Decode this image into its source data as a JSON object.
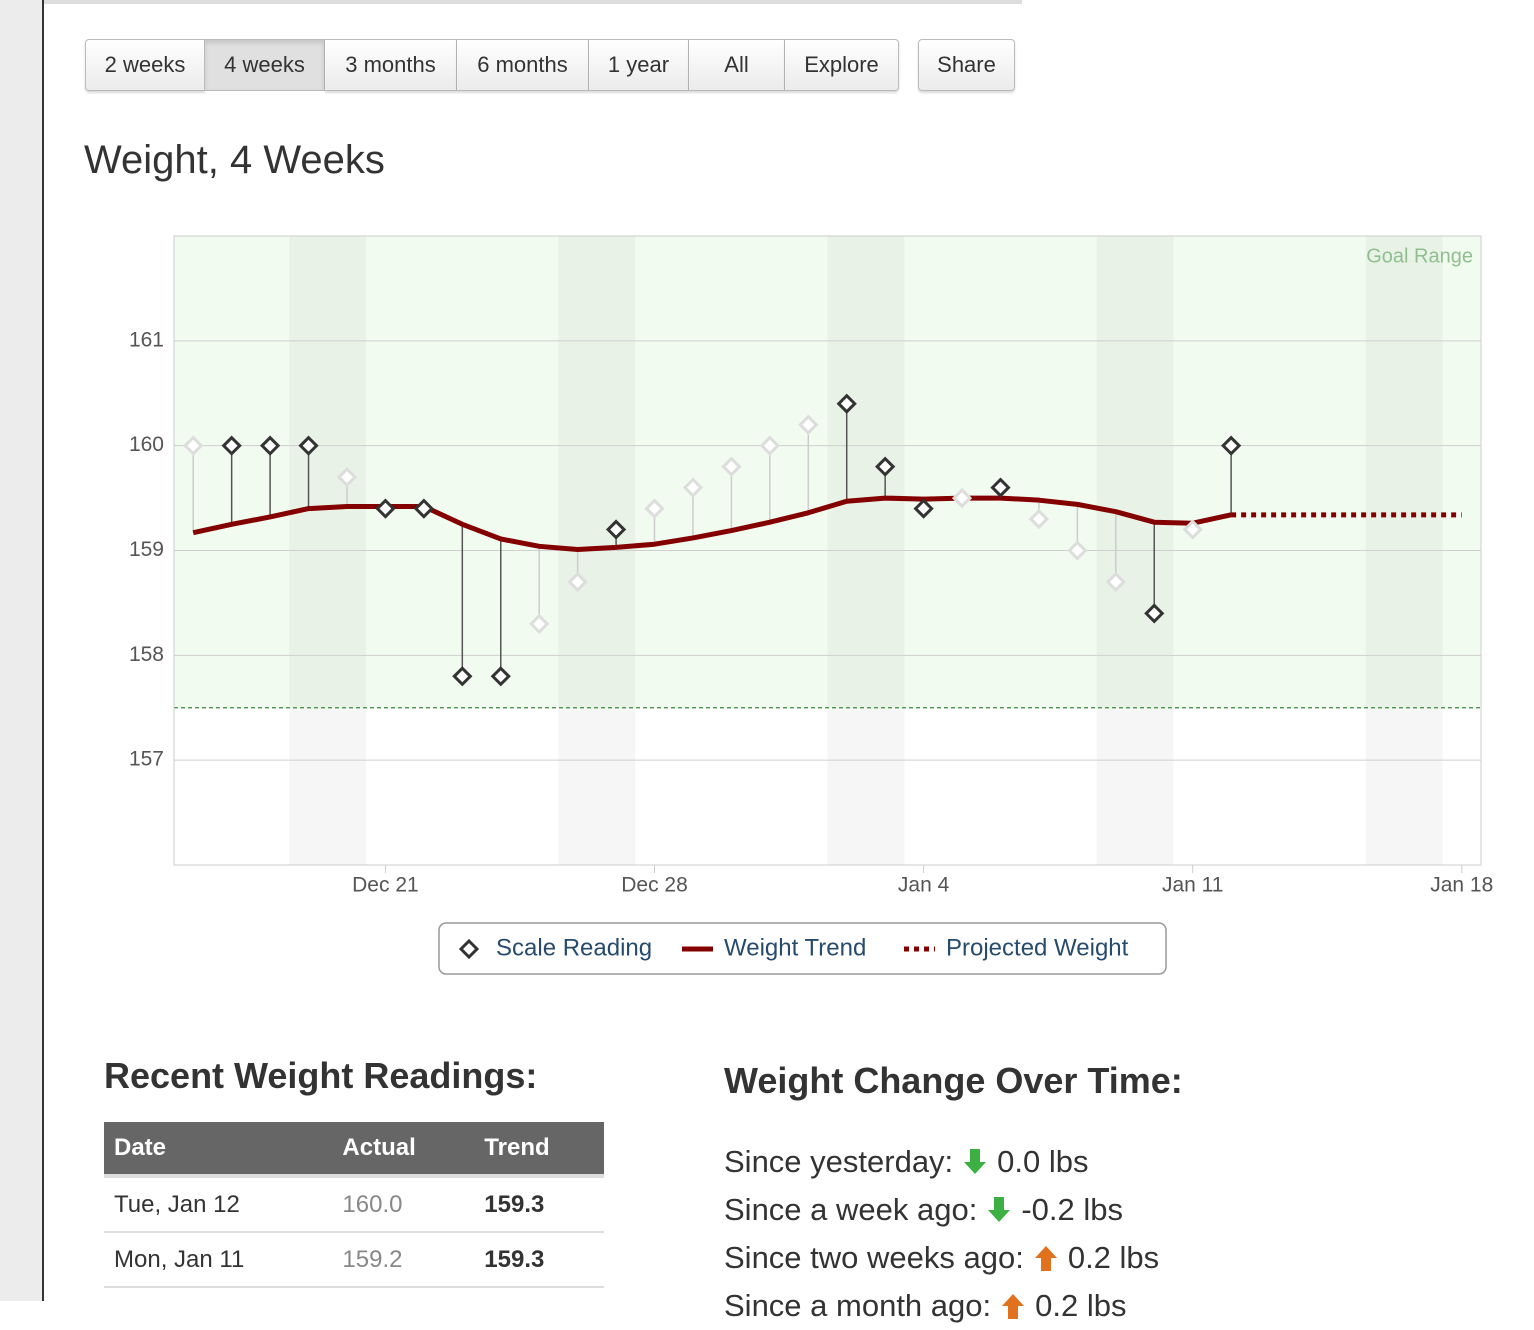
{
  "nav": {
    "buttons": [
      "2 weeks",
      "4 weeks",
      "3 months",
      "6 months",
      "1 year",
      "All",
      "Explore"
    ],
    "active": 1,
    "share": "Share"
  },
  "chart_data": {
    "type": "line",
    "title": "Weight, 4 Weeks",
    "x": [
      "Dec 16",
      "Dec 17",
      "Dec 18",
      "Dec 19",
      "Dec 20",
      "Dec 21",
      "Dec 22",
      "Dec 23",
      "Dec 24",
      "Dec 25",
      "Dec 26",
      "Dec 27",
      "Dec 28",
      "Dec 29",
      "Dec 30",
      "Dec 31",
      "Jan 1",
      "Jan 2",
      "Jan 3",
      "Jan 4",
      "Jan 5",
      "Jan 6",
      "Jan 7",
      "Jan 8",
      "Jan 9",
      "Jan 10",
      "Jan 11",
      "Jan 12"
    ],
    "series": [
      {
        "name": "Scale Reading",
        "color": "#333333",
        "marker": "diamond",
        "values": [
          160.0,
          160.0,
          160.0,
          160.0,
          159.7,
          159.4,
          159.4,
          157.8,
          157.8,
          158.3,
          158.7,
          159.2,
          159.4,
          159.6,
          159.8,
          160.0,
          160.2,
          160.4,
          159.8,
          159.4,
          159.5,
          159.6,
          159.3,
          159.0,
          158.7,
          158.4,
          159.2,
          160.0
        ],
        "interpolated": [
          true,
          false,
          false,
          false,
          true,
          false,
          false,
          false,
          false,
          true,
          true,
          false,
          true,
          true,
          true,
          true,
          true,
          false,
          false,
          false,
          true,
          false,
          true,
          true,
          true,
          false,
          true,
          false
        ]
      },
      {
        "name": "Weight Trend",
        "color": "#840000",
        "values": [
          159.17,
          159.25,
          159.32,
          159.4,
          159.42,
          159.42,
          159.42,
          159.25,
          159.11,
          159.04,
          159.01,
          159.03,
          159.06,
          159.12,
          159.19,
          159.27,
          159.36,
          159.47,
          159.5,
          159.49,
          159.5,
          159.5,
          159.48,
          159.44,
          159.37,
          159.27,
          159.26,
          159.34
        ]
      },
      {
        "name": "Projected Weight",
        "color": "#840000",
        "dash": "dotted",
        "x": [
          "Jan 12",
          "Jan 18"
        ],
        "values": [
          159.34,
          159.34
        ]
      }
    ],
    "xlim": [
      "Dec 16",
      "Jan 18"
    ],
    "xticks": [
      "Dec 21",
      "Dec 28",
      "Jan 4",
      "Jan 11",
      "Jan 18"
    ],
    "ylim": [
      156,
      162
    ],
    "yticks": [
      157,
      158,
      159,
      160,
      161
    ],
    "grid": true,
    "goal_range": {
      "label": "Goal Range",
      "min": 157.5,
      "color": "#3a8a3a"
    },
    "legend": "bottom"
  },
  "readings": {
    "title": "Recent Weight Readings:",
    "header": [
      "Date",
      "Actual",
      "Trend"
    ],
    "rows": [
      [
        "Tue, Jan 12",
        "160.0",
        "159.3"
      ],
      [
        "Mon, Jan 11",
        "159.2",
        "159.3"
      ]
    ]
  },
  "changes": {
    "title": "Weight Change Over Time:",
    "items": [
      {
        "label": "Since yesterday:",
        "direction": "down",
        "value": "0.0 lbs"
      },
      {
        "label": "Since a week ago:",
        "direction": "down",
        "value": "-0.2 lbs"
      },
      {
        "label": "Since two weeks ago:",
        "direction": "up",
        "value": "0.2 lbs"
      },
      {
        "label": "Since a month ago:",
        "direction": "up",
        "value": "0.2 lbs"
      }
    ]
  }
}
